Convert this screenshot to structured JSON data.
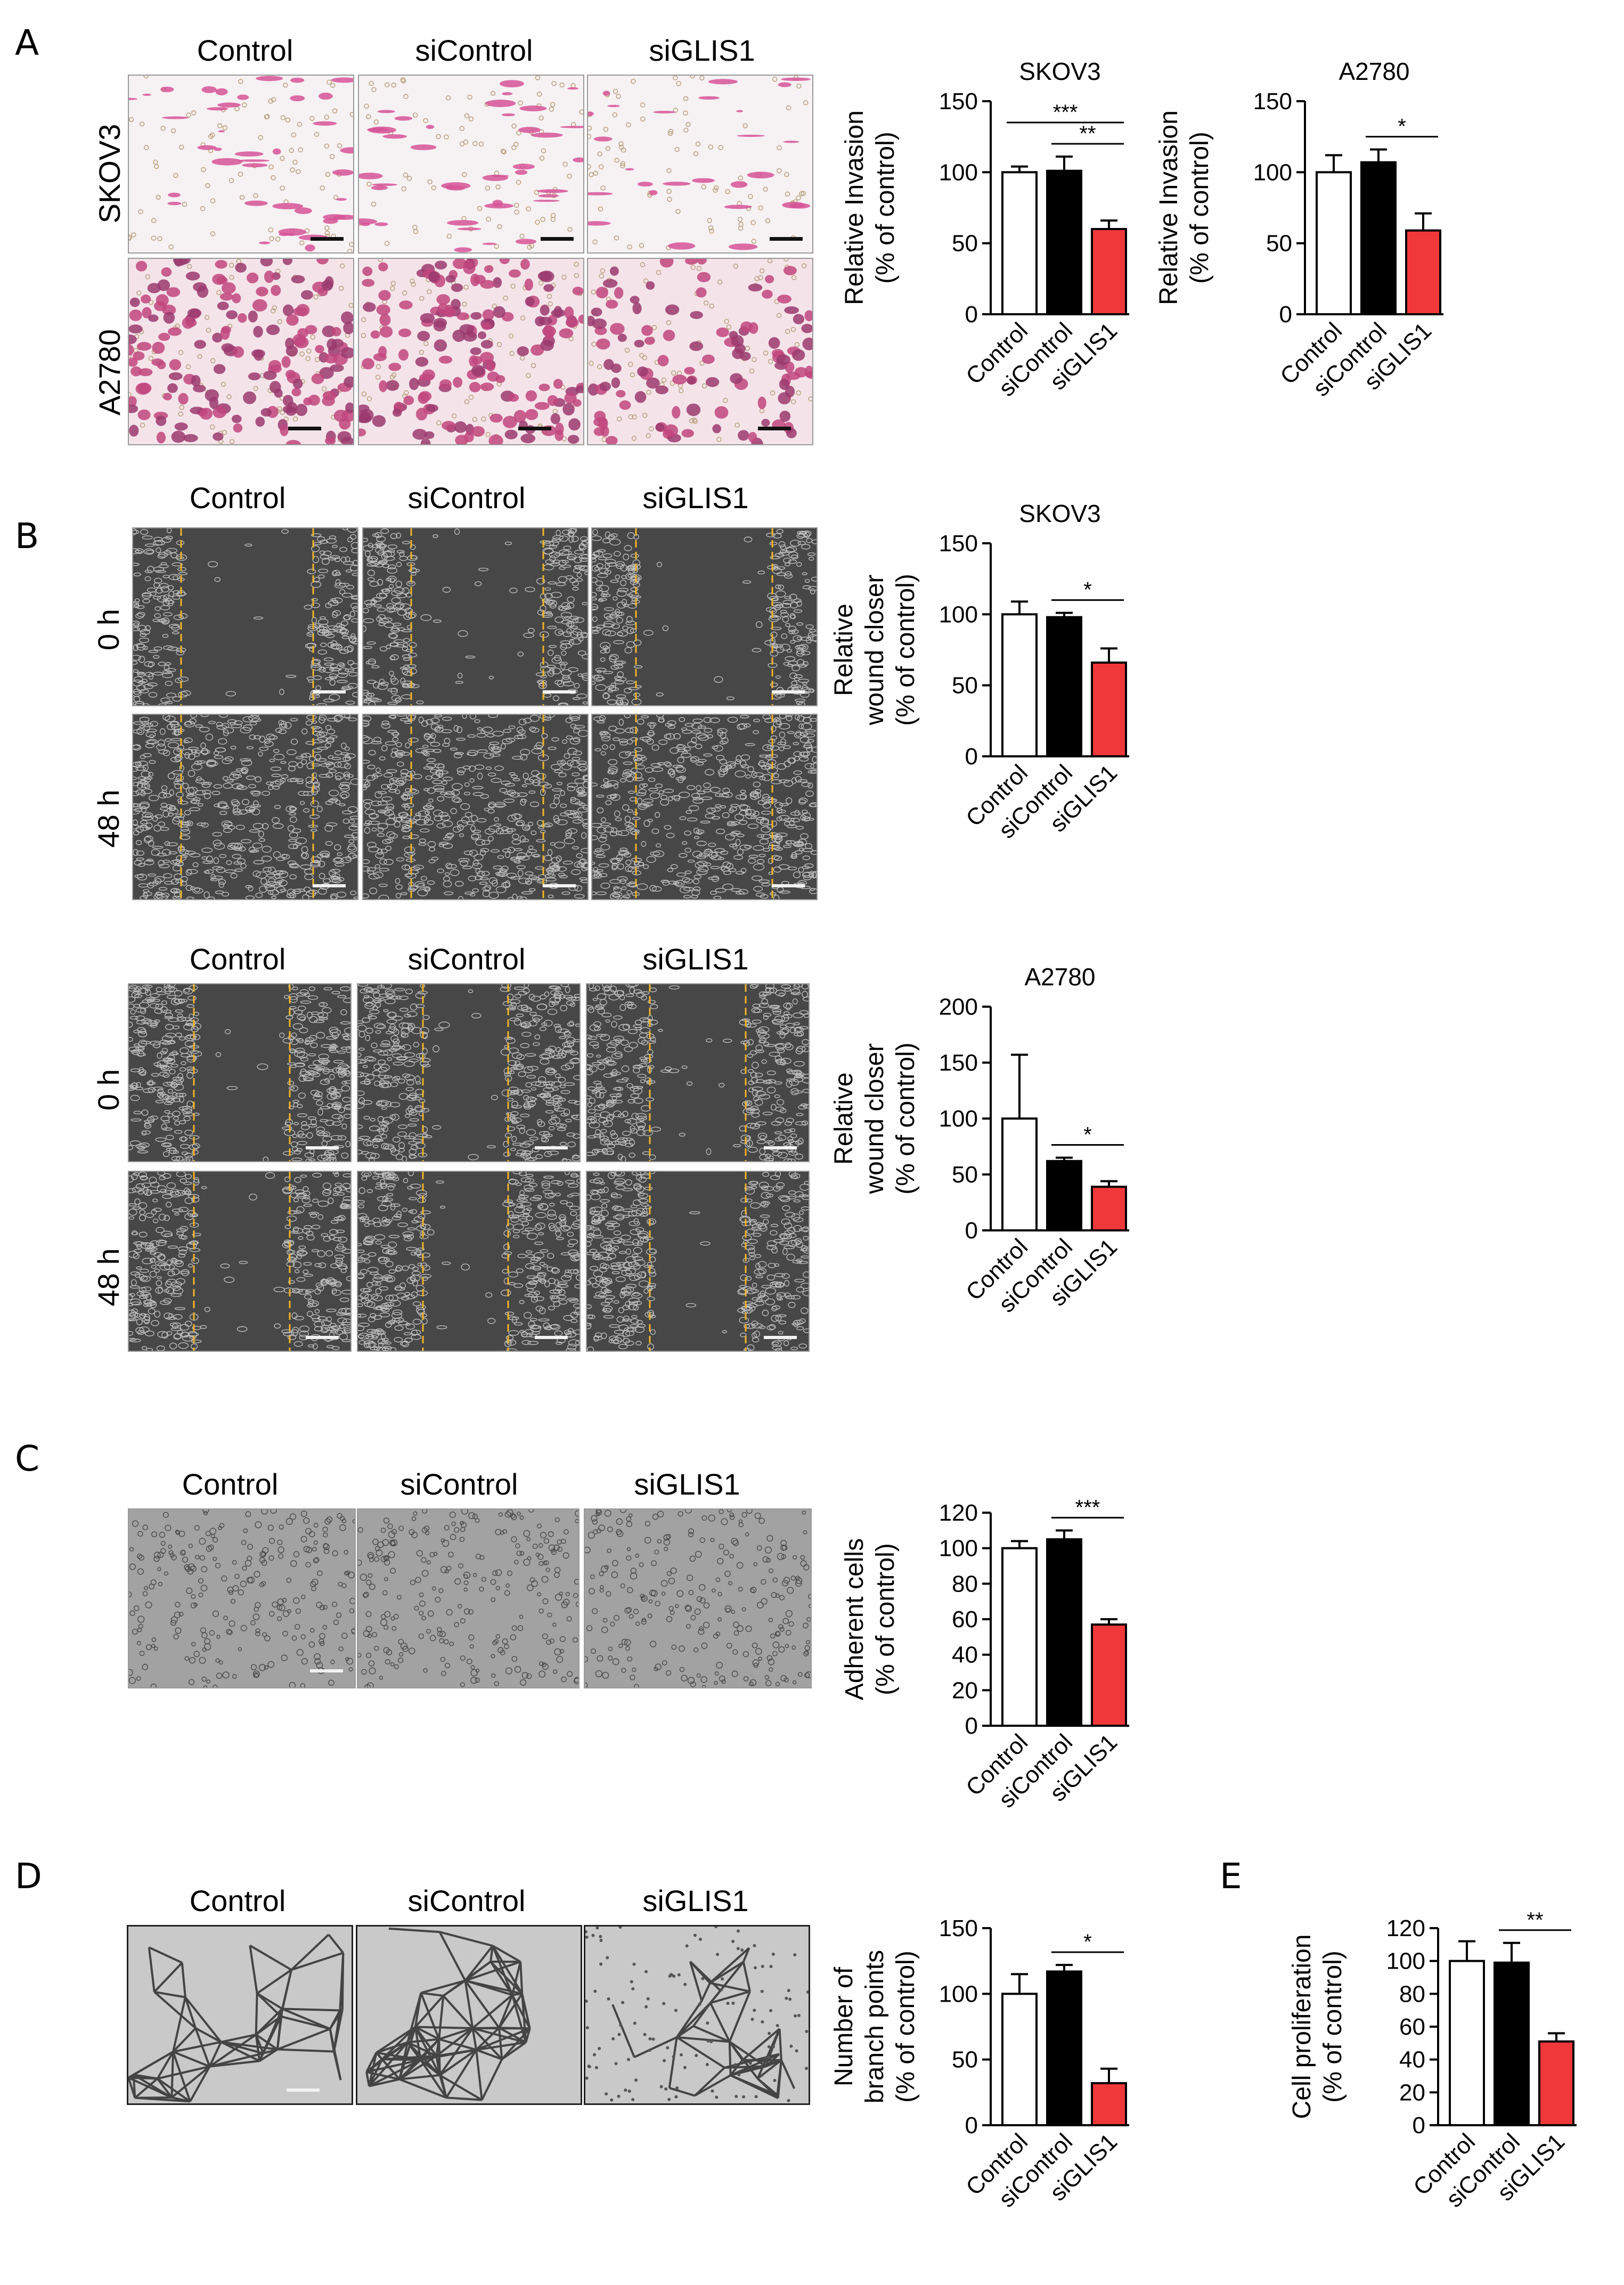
{
  "panels": {
    "A": {
      "letter": "A",
      "columns": [
        "Control",
        "siControl",
        "siGLIS1"
      ],
      "rows": [
        "SKOV3",
        "A2780"
      ]
    },
    "B": {
      "letter": "B",
      "columns_top": [
        "Control",
        "siControl",
        "siGLIS1"
      ],
      "rows_top": [
        "0 h",
        "48 h"
      ],
      "columns_bottom": [
        "Control",
        "siControl",
        "siGLIS1"
      ],
      "rows_bottom": [
        "0 h",
        "48 h"
      ]
    },
    "C": {
      "letter": "C",
      "columns": [
        "Control",
        "siControl",
        "siGLIS1"
      ]
    },
    "D": {
      "letter": "D",
      "columns": [
        "Control",
        "siControl",
        "siGLIS1"
      ]
    },
    "E": {
      "letter": "E"
    }
  },
  "colors": {
    "control": "#ffffff",
    "siControl": "#000000",
    "siGLIS1": "#f0383a",
    "wound_edge_line": "#f0b428",
    "invasion_stain": "#d44f92"
  },
  "chart_data": [
    {
      "id": "A-SKOV3",
      "type": "bar",
      "title": "SKOV3",
      "ylabel": [
        "Relative Invasion",
        "(% of control)"
      ],
      "categories": [
        "Control",
        "siControl",
        "siGLIS1"
      ],
      "values": [
        100,
        101,
        60
      ],
      "errors": [
        4,
        10,
        6
      ],
      "ylim": [
        0,
        150
      ],
      "yticks": [
        0,
        50,
        100,
        150
      ],
      "significance": [
        {
          "from": 1,
          "to": 2,
          "label": "**"
        },
        {
          "from": 0,
          "to": 2,
          "label": "***"
        }
      ]
    },
    {
      "id": "A-A2780",
      "type": "bar",
      "title": "A2780",
      "ylabel": [
        "Relative Invasion",
        "(% of control)"
      ],
      "categories": [
        "Control",
        "siControl",
        "siGLIS1"
      ],
      "values": [
        100,
        107,
        59
      ],
      "errors": [
        12,
        9,
        12
      ],
      "ylim": [
        0,
        150
      ],
      "yticks": [
        0,
        50,
        100,
        150
      ],
      "significance": [
        {
          "from": 1,
          "to": 2,
          "label": "*"
        }
      ]
    },
    {
      "id": "B-SKOV3",
      "type": "bar",
      "title": "SKOV3",
      "ylabel": [
        "Relative",
        "wound closer",
        "(% of control)"
      ],
      "categories": [
        "Control",
        "siControl",
        "siGLIS1"
      ],
      "values": [
        100,
        98,
        66
      ],
      "errors": [
        9,
        3,
        10
      ],
      "ylim": [
        0,
        150
      ],
      "yticks": [
        0,
        50,
        100,
        150
      ],
      "significance": [
        {
          "from": 1,
          "to": 2,
          "label": "*"
        }
      ]
    },
    {
      "id": "B-A2780",
      "type": "bar",
      "title": "A2780",
      "ylabel": [
        "Relative",
        "wound closer",
        "(% of control)"
      ],
      "categories": [
        "Control",
        "siControl",
        "siGLIS1"
      ],
      "values": [
        100,
        62,
        39
      ],
      "errors": [
        57,
        3,
        5
      ],
      "ylim": [
        0,
        200
      ],
      "yticks": [
        0,
        50,
        100,
        150,
        200
      ],
      "significance": [
        {
          "from": 1,
          "to": 2,
          "label": "*"
        }
      ]
    },
    {
      "id": "C-adhesion",
      "type": "bar",
      "title": "",
      "ylabel": [
        "Adherent cells",
        "(% of control)"
      ],
      "categories": [
        "Control",
        "siControl",
        "siGLIS1"
      ],
      "values": [
        100,
        105,
        57
      ],
      "errors": [
        4,
        5,
        3
      ],
      "ylim": [
        0,
        120
      ],
      "yticks": [
        0,
        20,
        40,
        60,
        80,
        100,
        120
      ],
      "significance": [
        {
          "from": 1,
          "to": 2,
          "label": "***"
        }
      ]
    },
    {
      "id": "D-tube",
      "type": "bar",
      "title": "",
      "ylabel": [
        "Number of",
        "branch points",
        "(% of control)"
      ],
      "categories": [
        "Control",
        "siControl",
        "siGLIS1"
      ],
      "values": [
        100,
        117,
        32
      ],
      "errors": [
        15,
        5,
        11
      ],
      "ylim": [
        0,
        150
      ],
      "yticks": [
        0,
        50,
        100,
        150
      ],
      "significance": [
        {
          "from": 1,
          "to": 2,
          "label": "*"
        }
      ]
    },
    {
      "id": "E-proliferation",
      "type": "bar",
      "title": "",
      "ylabel": [
        "Cell proliferation",
        "(% of control)"
      ],
      "categories": [
        "Control",
        "siControl",
        "siGLIS1"
      ],
      "values": [
        100,
        99,
        51
      ],
      "errors": [
        12,
        12,
        5
      ],
      "ylim": [
        0,
        120
      ],
      "yticks": [
        0,
        20,
        40,
        60,
        80,
        100,
        120
      ],
      "significance": [
        {
          "from": 1,
          "to": 2,
          "label": "**"
        }
      ]
    }
  ]
}
